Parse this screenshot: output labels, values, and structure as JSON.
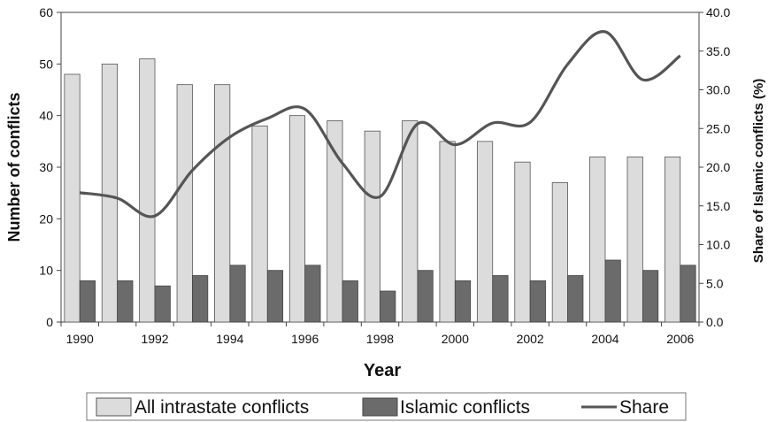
{
  "chart_data": {
    "type": "bar",
    "title": "",
    "x": [
      1990,
      1991,
      1992,
      1993,
      1994,
      1995,
      1996,
      1997,
      1998,
      1999,
      2000,
      2001,
      2002,
      2003,
      2004,
      2005,
      2006
    ],
    "x_tick_labels": [
      "1990",
      "1992",
      "1994",
      "1996",
      "1998",
      "2000",
      "2002",
      "2004",
      "2006"
    ],
    "xlabel": "Year",
    "ylabel": "Number of conflicts",
    "ylim": [
      0,
      60
    ],
    "y_tick_labels": [
      "0",
      "10",
      "20",
      "30",
      "40",
      "50",
      "60"
    ],
    "y2label": "Share of Islamic conflicts (%)",
    "y2lim": [
      0,
      40
    ],
    "y2_tick_labels": [
      "0.0",
      "5.0",
      "10.0",
      "15.0",
      "20.0",
      "25.0",
      "30.0",
      "35.0",
      "40.0"
    ],
    "grid": false,
    "legend_position": "bottom",
    "series": [
      {
        "name": "All intrastate conflicts",
        "type": "bar",
        "axis": "left",
        "color": "#dcdcdc",
        "values": [
          48,
          50,
          51,
          46,
          46,
          38,
          40,
          39,
          37,
          39,
          35,
          35,
          31,
          27,
          32,
          32,
          32
        ]
      },
      {
        "name": "Islamic conflicts",
        "type": "bar",
        "axis": "left",
        "color": "#6b6b6b",
        "values": [
          8,
          8,
          7,
          9,
          11,
          10,
          11,
          8,
          6,
          10,
          8,
          9,
          8,
          9,
          12,
          10,
          11
        ]
      },
      {
        "name": "Share",
        "type": "line",
        "axis": "right",
        "color": "#555555",
        "values": [
          16.7,
          16.0,
          13.7,
          19.6,
          23.9,
          26.3,
          27.5,
          20.5,
          16.2,
          25.6,
          22.9,
          25.7,
          25.8,
          33.3,
          37.5,
          31.3,
          34.4
        ]
      }
    ]
  }
}
